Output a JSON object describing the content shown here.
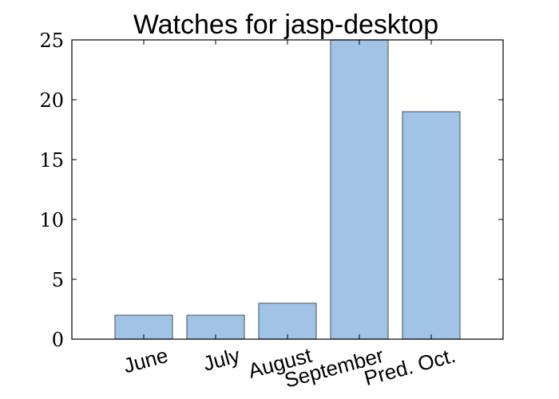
{
  "chart_data": {
    "type": "bar",
    "title": "Watches for jasp-desktop",
    "xlabel": "",
    "ylabel": "",
    "categories": [
      "June",
      "July",
      "August",
      "September",
      "Pred. Oct."
    ],
    "values": [
      2,
      2,
      3,
      25,
      19
    ],
    "ylim": [
      0,
      25
    ],
    "yticks": [
      "0",
      "5",
      "10",
      "15",
      "20",
      "25"
    ],
    "grid": false,
    "legend": "none",
    "colors": {
      "bar_fill": "#a1c3e6",
      "bar_edge": "#5e6670"
    }
  }
}
